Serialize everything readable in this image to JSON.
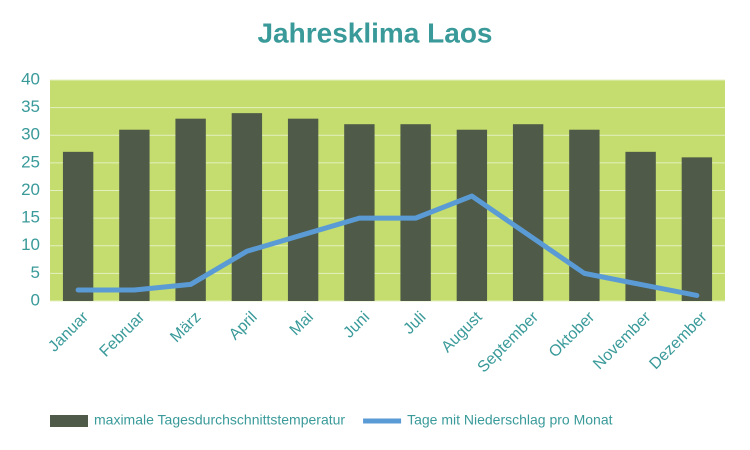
{
  "chart_data": {
    "type": "bar",
    "title": "Jahresklima Laos",
    "categories": [
      "Januar",
      "Februar",
      "März",
      "April",
      "Mai",
      "Juni",
      "Juli",
      "August",
      "September",
      "Oktober",
      "November",
      "Dezember"
    ],
    "series": [
      {
        "name": "maximale Tagesdurchschnittstemperatur",
        "type": "bar",
        "color": "#4f5a48",
        "values": [
          27,
          31,
          33,
          34,
          33,
          32,
          32,
          31,
          32,
          31,
          27,
          26
        ]
      },
      {
        "name": "Tage mit Niederschlag pro Monat",
        "type": "line",
        "color": "#5b9bd5",
        "values": [
          2,
          2,
          3,
          9,
          12,
          15,
          15,
          19,
          12,
          5,
          3,
          1
        ]
      }
    ],
    "ylim": [
      0,
      40
    ],
    "yticks": [
      0,
      5,
      10,
      15,
      20,
      25,
      30,
      35,
      40
    ],
    "grid": true,
    "legend": "bottom"
  }
}
